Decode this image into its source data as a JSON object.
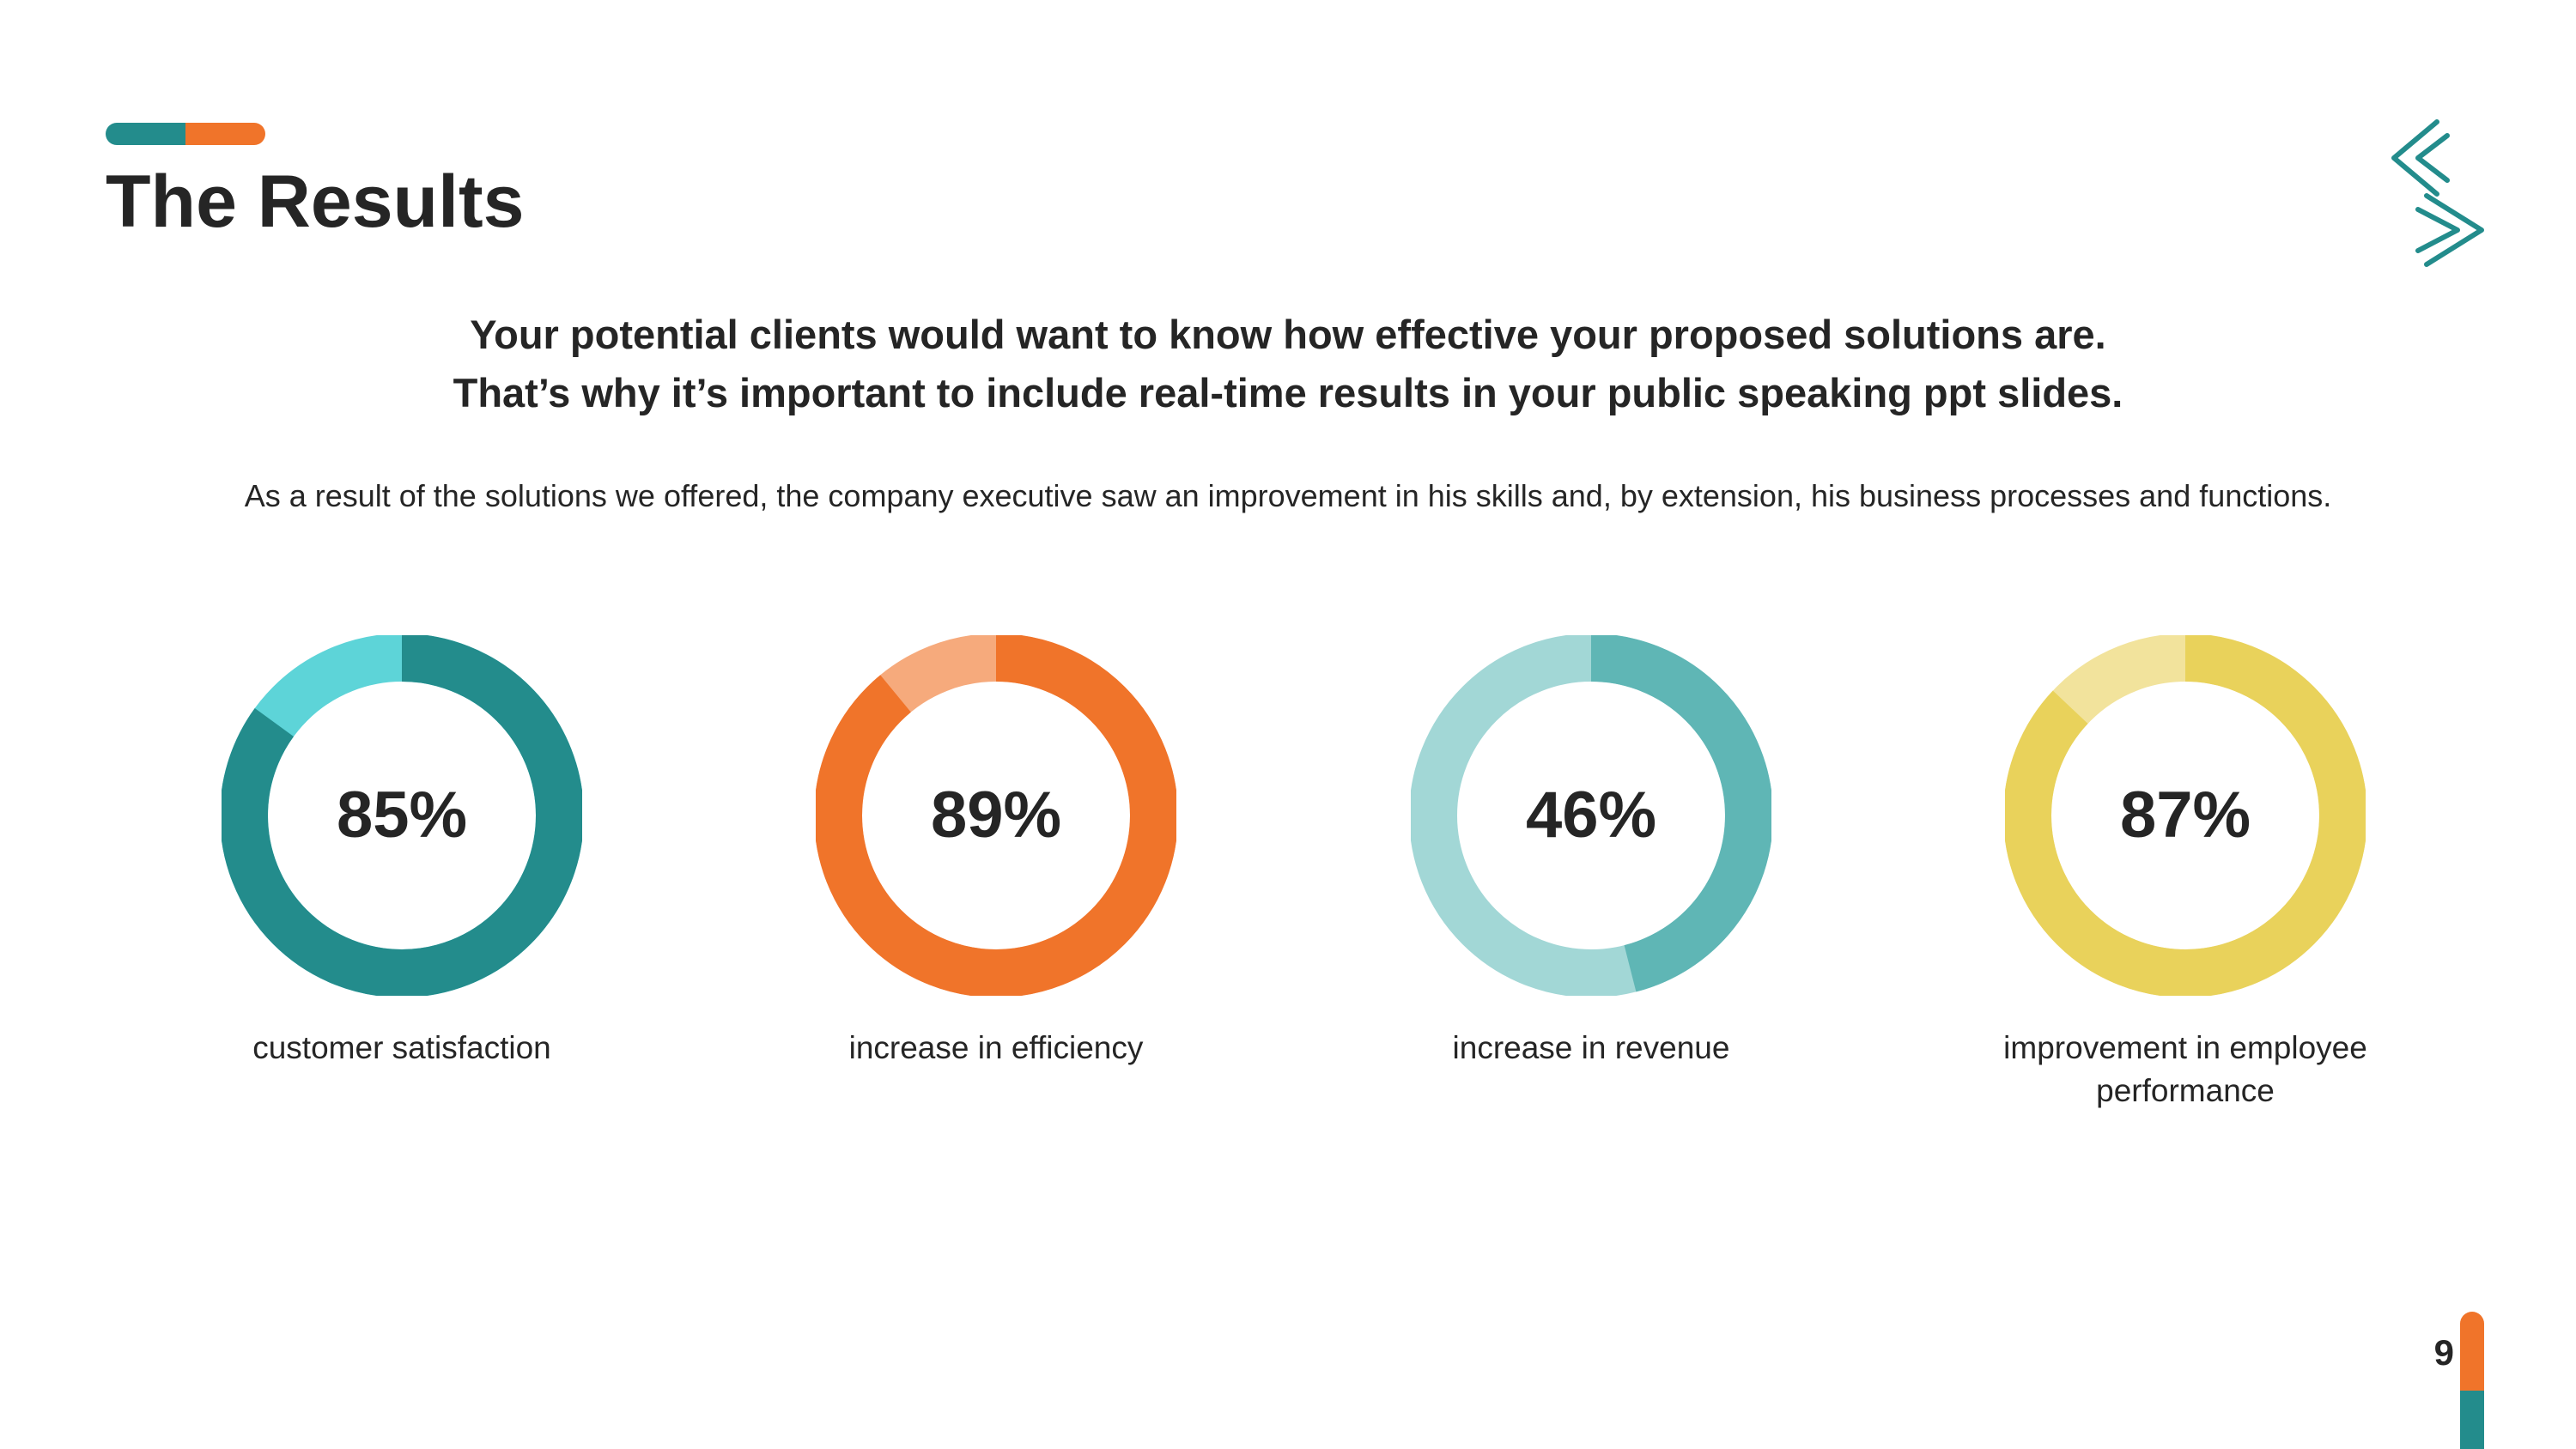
{
  "colors": {
    "teal": "#238C8C",
    "orange": "#F0742A",
    "text": "#252525"
  },
  "slide": {
    "title": "The Results",
    "headline": [
      "Your potential clients would want to know how effective your proposed solutions are.",
      "That’s why it’s important to include real-time results in your public speaking ppt slides."
    ],
    "body": "As a result of the solutions we offered, the company executive saw an improvement in his skills and, by extension, his business processes and functions.",
    "page_number": "9",
    "logo_icon": "chevron-s-logo-icon"
  },
  "chart_data": {
    "type": "pie",
    "style": "donut",
    "items": [
      {
        "value": 85,
        "display": "85%",
        "label": "customer satisfaction",
        "color": "#238C8C",
        "track_color": "#5DD4D8"
      },
      {
        "value": 89,
        "display": "89%",
        "label": "increase in efficiency",
        "color": "#F0742A",
        "track_color": "#F6AA7C"
      },
      {
        "value": 46,
        "display": "46%",
        "label": "increase in revenue",
        "color": "#5FB6B5",
        "track_color": "#A2D7D6"
      },
      {
        "value": 87,
        "display": "87%",
        "label": "improvement in employee performance",
        "color": "#E9D25B",
        "track_color": "#F2E39C"
      }
    ]
  }
}
